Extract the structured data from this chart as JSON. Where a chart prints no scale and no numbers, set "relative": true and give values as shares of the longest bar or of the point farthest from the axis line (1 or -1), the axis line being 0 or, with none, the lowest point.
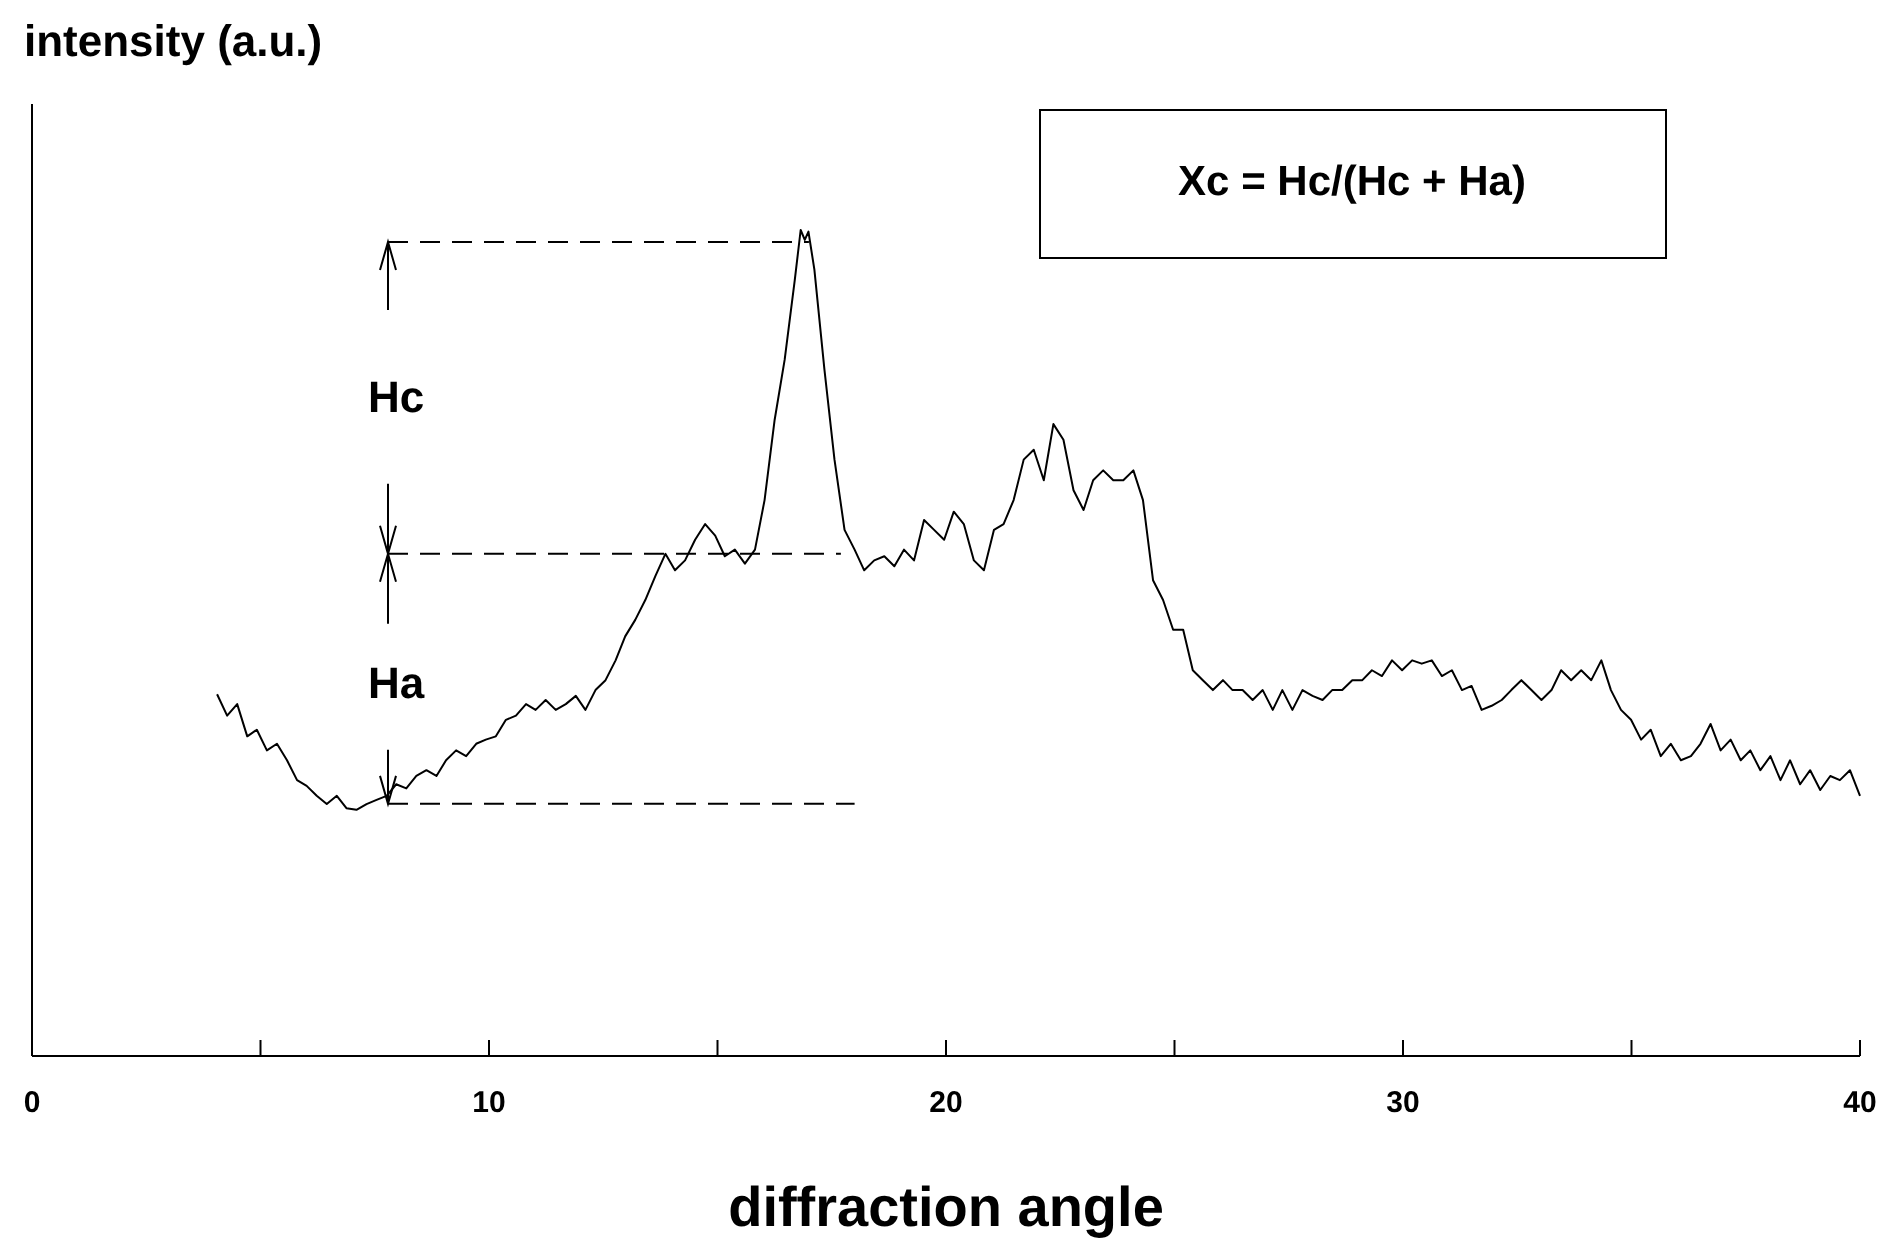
{
  "chart_data": {
    "type": "line",
    "relative": true,
    "ylabel": "intensity (a.u.)",
    "xlabel": "diffraction angle",
    "xlim": [
      0,
      40
    ],
    "xticks": [
      0,
      {
        "value": 5,
        "label": null
      },
      10,
      {
        "value": 15,
        "label": null
      },
      20,
      {
        "value": 25,
        "label": null
      },
      30,
      {
        "value": 35,
        "label": null
      },
      40
    ],
    "tick_labels": "x",
    "marker": "none",
    "line_style": "solid",
    "annotations": [
      "Hc",
      "Ha",
      "Xc = Hc/(Hc + Ha)"
    ],
    "series": [
      {
        "color": "#000000",
        "x": [
          4.05,
          4.27,
          4.49,
          4.71,
          4.92,
          5.14,
          5.36,
          5.58,
          5.8,
          6.01,
          6.23,
          6.45,
          6.67,
          6.88,
          7.1,
          7.32,
          7.54,
          7.76,
          7.97,
          8.19,
          8.41,
          8.63,
          8.85,
          9.06,
          9.28,
          9.5,
          9.72,
          9.93,
          10.15,
          10.37,
          10.59,
          10.81,
          11.02,
          11.24,
          11.46,
          11.68,
          11.9,
          12.11,
          12.33,
          12.55,
          12.77,
          12.98,
          13.2,
          13.42,
          13.64,
          13.86,
          14.07,
          14.29,
          14.51,
          14.73,
          14.95,
          15.16,
          15.38,
          15.6,
          15.82,
          16.03,
          16.25,
          16.47,
          16.69,
          16.82,
          16.91,
          16.99,
          17.12,
          17.34,
          17.56,
          17.78,
          18.0,
          18.21,
          18.43,
          18.65,
          18.87,
          19.08,
          19.3,
          19.52,
          19.74,
          19.96,
          20.17,
          20.39,
          20.61,
          20.83,
          21.05,
          21.26,
          21.48,
          21.7,
          21.92,
          22.14,
          22.35,
          22.57,
          22.79,
          23.01,
          23.22,
          23.44,
          23.66,
          23.88,
          24.1,
          24.31,
          24.53,
          24.75,
          24.97,
          25.19,
          25.4,
          25.62,
          25.84,
          26.06,
          26.27,
          26.49,
          26.71,
          26.93,
          27.15,
          27.36,
          27.58,
          27.8,
          28.02,
          28.24,
          28.45,
          28.67,
          28.89,
          29.11,
          29.32,
          29.54,
          29.76,
          29.98,
          30.2,
          30.41,
          30.63,
          30.85,
          31.07,
          31.29,
          31.5,
          31.72,
          31.94,
          32.16,
          32.37,
          32.59,
          32.81,
          33.03,
          33.25,
          33.46,
          33.68,
          33.9,
          34.12,
          34.34,
          34.55,
          34.77,
          34.99,
          35.21,
          35.42,
          35.64,
          35.86,
          36.08,
          36.3,
          36.51,
          36.73,
          36.95,
          37.17,
          37.39,
          37.6,
          37.82,
          38.04,
          38.26,
          38.47,
          38.69,
          38.91,
          39.13,
          39.35,
          39.56,
          39.78,
          40.0
        ],
        "values": [
          0.438,
          0.412,
          0.426,
          0.387,
          0.395,
          0.37,
          0.378,
          0.358,
          0.334,
          0.327,
          0.315,
          0.305,
          0.315,
          0.3,
          0.298,
          0.305,
          0.31,
          0.315,
          0.329,
          0.324,
          0.339,
          0.346,
          0.339,
          0.358,
          0.37,
          0.363,
          0.378,
          0.383,
          0.387,
          0.407,
          0.412,
          0.426,
          0.419,
          0.431,
          0.419,
          0.426,
          0.436,
          0.419,
          0.443,
          0.455,
          0.479,
          0.508,
          0.528,
          0.552,
          0.581,
          0.608,
          0.588,
          0.6,
          0.625,
          0.644,
          0.63,
          0.605,
          0.613,
          0.596,
          0.613,
          0.673,
          0.77,
          0.843,
          0.939,
          1.0,
          0.988,
          0.998,
          0.952,
          0.831,
          0.722,
          0.637,
          0.613,
          0.588,
          0.6,
          0.605,
          0.593,
          0.613,
          0.6,
          0.649,
          0.637,
          0.625,
          0.659,
          0.644,
          0.6,
          0.588,
          0.637,
          0.644,
          0.673,
          0.722,
          0.734,
          0.697,
          0.765,
          0.746,
          0.685,
          0.661,
          0.697,
          0.709,
          0.697,
          0.697,
          0.709,
          0.673,
          0.576,
          0.552,
          0.516,
          0.516,
          0.467,
          0.455,
          0.443,
          0.455,
          0.443,
          0.443,
          0.431,
          0.443,
          0.419,
          0.443,
          0.419,
          0.443,
          0.436,
          0.431,
          0.443,
          0.443,
          0.455,
          0.455,
          0.467,
          0.46,
          0.479,
          0.467,
          0.479,
          0.475,
          0.479,
          0.46,
          0.467,
          0.443,
          0.448,
          0.419,
          0.424,
          0.431,
          0.443,
          0.455,
          0.443,
          0.431,
          0.443,
          0.467,
          0.455,
          0.467,
          0.455,
          0.479,
          0.443,
          0.419,
          0.407,
          0.383,
          0.395,
          0.363,
          0.378,
          0.358,
          0.363,
          0.378,
          0.402,
          0.37,
          0.383,
          0.358,
          0.37,
          0.346,
          0.363,
          0.334,
          0.358,
          0.329,
          0.346,
          0.322,
          0.339,
          0.334,
          0.346,
          0.315
        ]
      }
    ]
  }
}
